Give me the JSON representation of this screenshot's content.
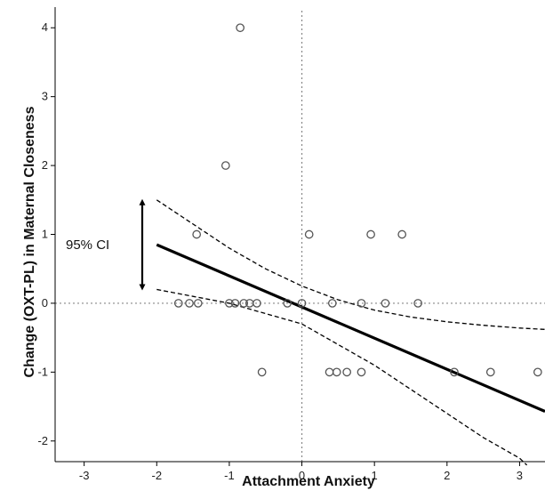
{
  "chart_data": {
    "type": "scatter",
    "title": "",
    "xlabel": "Attachment Anxiety",
    "ylabel": "Change (OXT-PL) in Maternal Closeness",
    "xlim": [
      -3.4,
      3.35
    ],
    "ylim": [
      -2.3,
      4.3
    ],
    "xticks": [
      -3,
      -2,
      -1,
      0,
      1,
      2,
      3
    ],
    "yticks": [
      -2,
      -1,
      0,
      1,
      2,
      3,
      4
    ],
    "grid": false,
    "reference_lines": {
      "x": 0,
      "y": 0,
      "style": "dotted"
    },
    "points": [
      {
        "x": -0.85,
        "y": 4
      },
      {
        "x": -1.05,
        "y": 2
      },
      {
        "x": -1.45,
        "y": 1
      },
      {
        "x": 0.1,
        "y": 1
      },
      {
        "x": 0.95,
        "y": 1
      },
      {
        "x": 1.38,
        "y": 1
      },
      {
        "x": -1.7,
        "y": 0
      },
      {
        "x": -1.55,
        "y": 0
      },
      {
        "x": -1.43,
        "y": 0
      },
      {
        "x": -1.0,
        "y": 0
      },
      {
        "x": -0.92,
        "y": 0
      },
      {
        "x": -0.8,
        "y": 0
      },
      {
        "x": -0.72,
        "y": 0
      },
      {
        "x": -0.62,
        "y": 0
      },
      {
        "x": -0.2,
        "y": 0
      },
      {
        "x": 0.0,
        "y": 0
      },
      {
        "x": 0.42,
        "y": 0
      },
      {
        "x": 0.82,
        "y": 0
      },
      {
        "x": 1.15,
        "y": 0
      },
      {
        "x": 1.6,
        "y": 0
      },
      {
        "x": -0.55,
        "y": -1
      },
      {
        "x": 0.38,
        "y": -1
      },
      {
        "x": 0.48,
        "y": -1
      },
      {
        "x": 0.62,
        "y": -1
      },
      {
        "x": 0.82,
        "y": -1
      },
      {
        "x": 2.1,
        "y": -1
      },
      {
        "x": 2.6,
        "y": -1
      },
      {
        "x": 3.25,
        "y": -1
      }
    ],
    "regression_line": {
      "x": [
        -2,
        3.35
      ],
      "y": [
        0.85,
        -1.57
      ]
    },
    "ci_upper": {
      "x": [
        -2,
        -1.5,
        -1,
        -0.5,
        0,
        0.5,
        1,
        1.5,
        2,
        2.5,
        3,
        3.35
      ],
      "y": [
        1.5,
        1.15,
        0.8,
        0.5,
        0.25,
        0.05,
        -0.1,
        -0.2,
        -0.27,
        -0.32,
        -0.36,
        -0.38
      ]
    },
    "ci_lower": {
      "x": [
        -2,
        -1.5,
        -1,
        -0.5,
        0,
        0.5,
        1,
        1.5,
        2,
        2.5,
        3,
        3.1
      ],
      "y": [
        0.2,
        0.1,
        0.0,
        -0.15,
        -0.3,
        -0.6,
        -0.9,
        -1.25,
        -1.6,
        -1.95,
        -2.25,
        -2.35
      ]
    },
    "annotation": {
      "text": "95% CI",
      "y_from": 0.2,
      "y_to": 1.5
    }
  }
}
